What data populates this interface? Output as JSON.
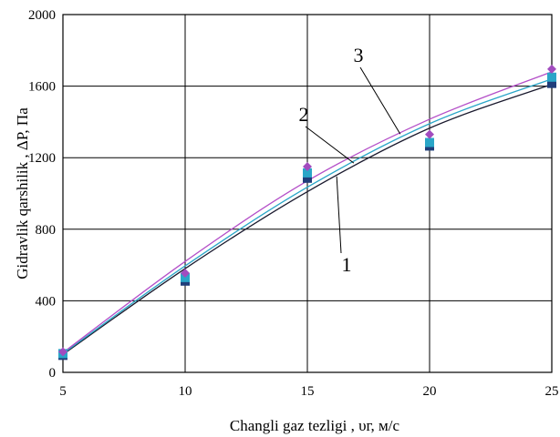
{
  "chart_data": {
    "type": "line",
    "xlabel": "Changli gaz tezligi , υг, м/с",
    "ylabel": "Gidravlik qarshilik , ΔP, Па",
    "xlim": [
      5,
      25
    ],
    "ylim": [
      0,
      2000
    ],
    "x_ticks": [
      5,
      10,
      15,
      20,
      25
    ],
    "y_ticks": [
      0,
      400,
      800,
      1200,
      1600,
      2000
    ],
    "grid": true,
    "series": [
      {
        "name": "1",
        "color": "#1a1a2e",
        "x": [
          5,
          10,
          15,
          20,
          25
        ],
        "y": [
          100,
          580,
          1010,
          1365,
          1610
        ],
        "markers": {
          "shape": "square",
          "color": "#1f3d7a",
          "x": [
            5,
            10,
            15,
            20,
            25
          ],
          "y": [
            95,
            510,
            1085,
            1265,
            1615
          ]
        }
      },
      {
        "name": "2",
        "color": "#2aa6c8",
        "x": [
          5,
          10,
          15,
          20,
          25
        ],
        "y": [
          105,
          595,
          1035,
          1390,
          1640
        ],
        "markers": {
          "shape": "square",
          "color": "#2aa6c8",
          "x": [
            5,
            10,
            15,
            20,
            25
          ],
          "y": [
            105,
            530,
            1115,
            1285,
            1650
          ]
        }
      },
      {
        "name": "3",
        "color": "#b44fc8",
        "x": [
          5,
          10,
          15,
          20,
          25
        ],
        "y": [
          110,
          620,
          1070,
          1415,
          1680
        ],
        "markers": {
          "shape": "diamond",
          "color": "#a24cbf",
          "x": [
            5,
            10,
            15,
            20,
            25
          ],
          "y": [
            115,
            555,
            1150,
            1330,
            1695
          ]
        }
      }
    ],
    "annotations": [
      {
        "text": "1",
        "series": "1",
        "at_x": 16.2
      },
      {
        "text": "2",
        "series": "2",
        "at_x": 16.9
      },
      {
        "text": "3",
        "series": "3",
        "at_x": 18.8
      }
    ]
  }
}
